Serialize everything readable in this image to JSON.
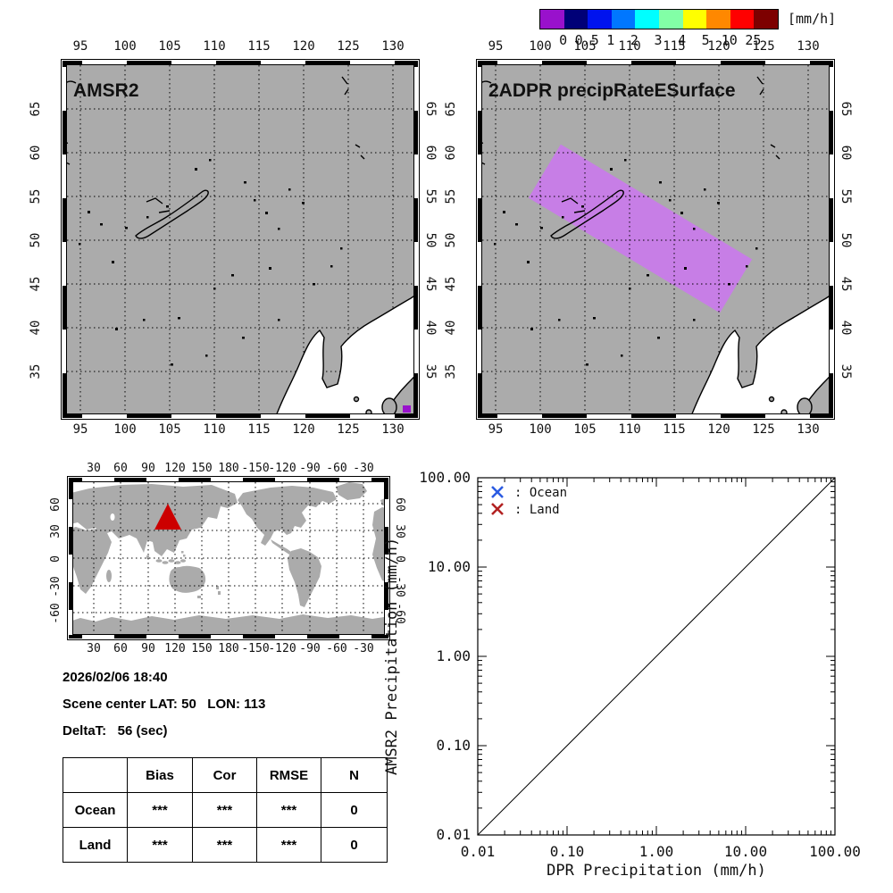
{
  "colorbar": {
    "unit_label": "[mm/h]",
    "tick_labels": [
      "0",
      "0.5",
      "1",
      "2",
      "3",
      "4",
      "5",
      "10",
      "25"
    ],
    "colors": [
      "#9911CC",
      "#000077",
      "#0013EE",
      "#0077FF",
      "#00FFFF",
      "#82FFA6",
      "#FFFF00",
      "#FF8800",
      "#FF0000",
      "#7D0000"
    ]
  },
  "maps": {
    "left": {
      "title": "AMSR2"
    },
    "right": {
      "title": "2ADPR precipRateESurface"
    },
    "lon_labels": [
      "95",
      "100",
      "105",
      "110",
      "115",
      "120",
      "125",
      "130"
    ],
    "lat_labels": [
      "65",
      "60",
      "55",
      "50",
      "45",
      "40",
      "35"
    ],
    "land_color": "#ABABAB",
    "ocean_color": "#FFFFFF",
    "swath_color": "#C77EE6",
    "swath_min_value_color": "#9911CC"
  },
  "world_map": {
    "lon_labels": [
      "30",
      "60",
      "90",
      "120",
      "150",
      "180",
      "-150",
      "-120",
      "-90",
      "-60",
      "-30"
    ],
    "lat_labels": [
      "60",
      "30",
      "0",
      "-30",
      "-60"
    ],
    "marker_color": "#CC0000",
    "marker_lat": 50,
    "marker_lon": 113
  },
  "info": {
    "datetime": "2026/02/06 18:40",
    "scene_center": "Scene center LAT: 50   LON: 113",
    "delta_t": "DeltaT:   56 (sec)"
  },
  "table": {
    "col_headers": [
      "",
      "Bias",
      "Cor",
      "RMSE",
      "N"
    ],
    "rows": [
      {
        "label": "Ocean",
        "values": [
          "***",
          "***",
          "***",
          "0"
        ]
      },
      {
        "label": "Land",
        "values": [
          "***",
          "***",
          "***",
          "0"
        ]
      }
    ]
  },
  "chart_data": {
    "type": "scatter",
    "title": "",
    "xlabel": "DPR Precipitation (mm/h)",
    "ylabel": "AMSR2 Precipitation (mm/h)",
    "xscale": "log",
    "yscale": "log",
    "xlim": [
      0.01,
      100
    ],
    "ylim": [
      0.01,
      100
    ],
    "x_tick_labels": [
      "0.01",
      "0.10",
      "1.00",
      "10.00",
      "100.00"
    ],
    "y_tick_labels": [
      "100.00",
      "10.00",
      "1.00",
      "0.10",
      "0.01"
    ],
    "grid": false,
    "reference_line": "1:1 diagonal",
    "series": [
      {
        "name": "Ocean",
        "marker": "x",
        "color": "#2B5BE2",
        "points": []
      },
      {
        "name": "Land",
        "marker": "x",
        "color": "#B22222",
        "points": []
      }
    ],
    "legend": [
      {
        "label": ": Ocean",
        "color": "#2B5BE2"
      },
      {
        "label": ": Land",
        "color": "#B22222"
      }
    ],
    "legend_position": "top-left"
  }
}
